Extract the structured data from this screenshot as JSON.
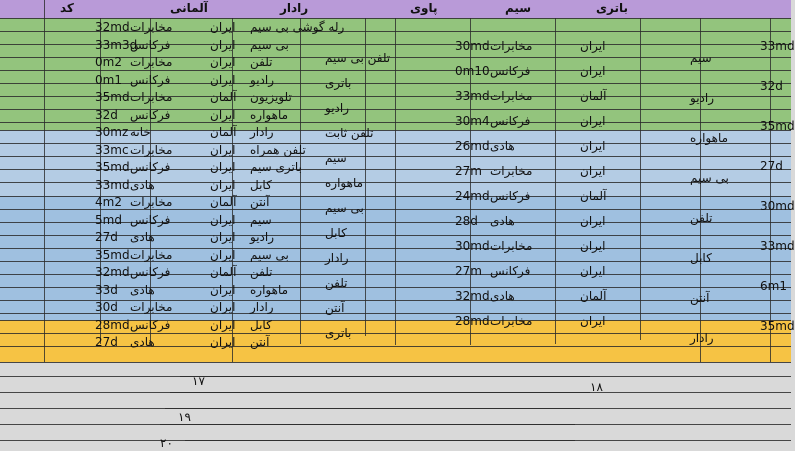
{
  "header": {
    "cols": [
      "باتری",
      "سیم",
      "پاوی",
      "رادار",
      "آلمانی",
      "کد"
    ]
  },
  "rows_left": [
    {
      "code": "32md",
      "a": "مخابرات",
      "b": "ایران",
      "c": "رله گوشی بی سیم"
    },
    {
      "code": "33m3d",
      "a": "فرکانس",
      "b": "ایران",
      "c": "بی سیم"
    },
    {
      "code": "0m2",
      "a": "مخابرات",
      "b": "ایران",
      "c": "تلفن"
    },
    {
      "code": "0m1",
      "a": "فرکانس",
      "b": "ایران",
      "c": "رادیو"
    },
    {
      "code": "35md",
      "a": "مخابرات",
      "b": "آلمان",
      "c": "تلویزیون"
    },
    {
      "code": "32d",
      "a": "فرکانس",
      "b": "ایران",
      "c": "ماهواره"
    },
    {
      "code": "30mz",
      "a": "خانه",
      "b": "آلمان",
      "c": "رادار"
    },
    {
      "code": "33mc",
      "a": "مخابرات",
      "b": "ایران",
      "c": "تلفن همراه"
    },
    {
      "code": "35md",
      "a": "فرکانس",
      "b": "ایران",
      "c": "باتری سیم"
    },
    {
      "code": "33md",
      "a": "هادی",
      "b": "ایران",
      "c": "کابل"
    },
    {
      "code": "4m2",
      "a": "مخابرات",
      "b": "آلمان",
      "c": "آنتن"
    },
    {
      "code": "5md",
      "a": "فرکانس",
      "b": "ایران",
      "c": "سیم"
    },
    {
      "code": "27d",
      "a": "هادی",
      "b": "ایران",
      "c": "رادیو"
    },
    {
      "code": "35md",
      "a": "مخابرات",
      "b": "ایران",
      "c": "بی سیم"
    },
    {
      "code": "32md",
      "a": "فرکانس",
      "b": "آلمان",
      "c": "تلفن"
    },
    {
      "code": "33d",
      "a": "هادی",
      "b": "ایران",
      "c": "ماهواره"
    },
    {
      "code": "30d",
      "a": "مخابرات",
      "b": "ایران",
      "c": "رادار"
    },
    {
      "code": "28md",
      "a": "فرکانس",
      "b": "ایران",
      "c": "کابل"
    },
    {
      "code": "27d",
      "a": "هادی",
      "b": "ایران",
      "c": "آنتن"
    }
  ],
  "rows_mid": [
    {
      "code": "30md",
      "a": "مخابرات",
      "b": "ایران",
      "c": "تلفن بی سیم"
    },
    {
      "code": "0m10",
      "a": "فرکانس",
      "b": "ایران",
      "c": "باتری"
    },
    {
      "code": "33md",
      "a": "مخابرات",
      "b": "آلمان",
      "c": "رادیو"
    },
    {
      "code": "30m4",
      "a": "فرکانس",
      "b": "ایران",
      "c": "تلفن ثابت"
    },
    {
      "code": "26md",
      "a": "هادی",
      "b": "ایران",
      "c": "سیم"
    },
    {
      "code": "27m",
      "a": "مخابرات",
      "b": "ایران",
      "c": "ماهواره"
    },
    {
      "code": "24md",
      "a": "فرکانس",
      "b": "آلمان",
      "c": "بی سیم"
    },
    {
      "code": "28d",
      "a": "هادی",
      "b": "ایران",
      "c": "کابل"
    },
    {
      "code": "30md",
      "a": "مخابرات",
      "b": "ایران",
      "c": "رادار"
    },
    {
      "code": "27m",
      "a": "فرکانس",
      "b": "ایران",
      "c": "تلفن"
    },
    {
      "code": "32md",
      "a": "هادی",
      "b": "آلمان",
      "c": "آنتن"
    },
    {
      "code": "28md",
      "a": "مخابرات",
      "b": "ایران",
      "c": "باتری"
    }
  ],
  "rows_right": [
    {
      "code": "33md",
      "c": "سیم"
    },
    {
      "code": "32d",
      "c": "رادیو"
    },
    {
      "code": "35md",
      "c": "ماهواره"
    },
    {
      "code": "27d",
      "c": "بی سیم"
    },
    {
      "code": "30md",
      "c": "تلفن"
    },
    {
      "code": "33md",
      "c": "کابل"
    },
    {
      "code": "6m1",
      "c": "آنتن"
    },
    {
      "code": "35md",
      "c": "رادار"
    }
  ],
  "row_numbers": [
    "۱۷",
    "۱۸",
    "۱۹",
    "۲۰"
  ]
}
